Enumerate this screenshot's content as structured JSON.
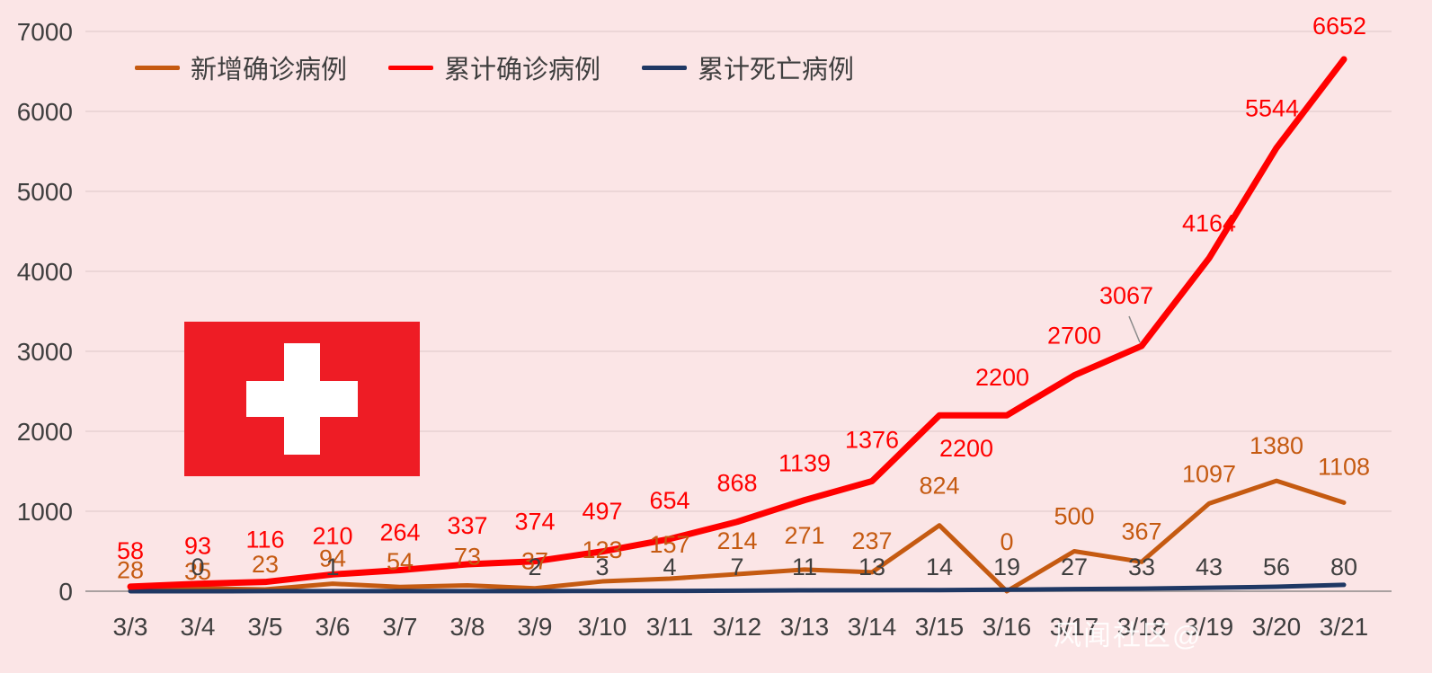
{
  "chart_data": {
    "type": "line",
    "title": "",
    "xlabel": "",
    "ylabel": "",
    "ylim": [
      0,
      7000
    ],
    "y_ticks": [
      0,
      1000,
      2000,
      3000,
      4000,
      5000,
      6000,
      7000
    ],
    "grid": true,
    "legend_position": "top-left",
    "background_color": "#FBE5E6",
    "categories": [
      "3/3",
      "3/4",
      "3/5",
      "3/6",
      "3/7",
      "3/8",
      "3/9",
      "3/10",
      "3/11",
      "3/12",
      "3/13",
      "3/14",
      "3/15",
      "3/16",
      "3/17",
      "3/18",
      "3/19",
      "3/20",
      "3/21"
    ],
    "series": [
      {
        "id": "new-confirmed",
        "name": "新增确诊病例",
        "color": "#C55A11",
        "values": [
          28,
          35,
          23,
          94,
          54,
          73,
          37,
          123,
          157,
          214,
          271,
          237,
          824,
          0,
          500,
          367,
          1097,
          1380,
          1108
        ],
        "labels": [
          "28",
          "35",
          "23",
          "94",
          "54",
          "73",
          "37",
          "123",
          "157",
          "214",
          "271",
          "237",
          "824",
          "0",
          "500",
          "367",
          "1097",
          "1380",
          "1108"
        ]
      },
      {
        "id": "cumulative-confirmed",
        "name": "累计确诊病例",
        "color": "#FF0000",
        "values": [
          58,
          93,
          116,
          210,
          264,
          337,
          374,
          497,
          654,
          868,
          1139,
          1376,
          2200,
          2200,
          2700,
          3067,
          4164,
          5544,
          6652
        ],
        "labels": [
          "58",
          "93",
          "116",
          "210",
          "264",
          "337",
          "374",
          "497",
          "654",
          "868",
          "1139",
          "1376",
          "2200",
          "2200",
          "2700",
          "3067",
          "4164",
          "5544",
          "6652"
        ]
      },
      {
        "id": "cumulative-deaths",
        "name": "累计死亡病例",
        "color": "#1F3864",
        "label_color": "#3F3F3F",
        "values": [
          0,
          0,
          1,
          1,
          1,
          2,
          2,
          3,
          4,
          7,
          11,
          13,
          14,
          19,
          27,
          33,
          43,
          56,
          80
        ],
        "labels": [
          null,
          "0",
          null,
          "1",
          null,
          null,
          "2",
          "3",
          "4",
          "7",
          "11",
          "13",
          "14",
          "19",
          "27",
          "33",
          "43",
          "56",
          "80"
        ]
      }
    ]
  },
  "axis": {
    "label_color": "#3F3F3F",
    "gridline_color": "#E7D2D2",
    "axis_line_color": "#A9A0A0"
  },
  "flag": {
    "name": "Switzerland",
    "background": "#EE1C25",
    "cross_color": "#FFFFFF"
  },
  "watermark": "风闻社区@"
}
